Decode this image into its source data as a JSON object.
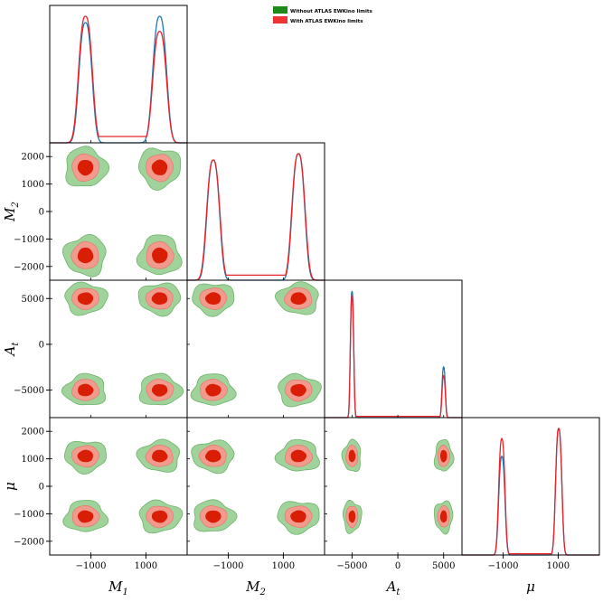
{
  "chart_data": {
    "type": "corner",
    "parameters": [
      {
        "symbol": "M",
        "sub": "1",
        "range": [
          -2500,
          2500
        ],
        "ticks": [
          -1000,
          1000
        ]
      },
      {
        "symbol": "M",
        "sub": "2",
        "range": [
          -2500,
          2500
        ],
        "ticks": [
          -2000,
          -1000,
          0,
          1000,
          2000
        ],
        "tick_labels_x": [
          -1000,
          1000
        ]
      },
      {
        "symbol": "A",
        "sub": "t",
        "range": [
          -8000,
          7000
        ],
        "ticks": [
          -5000,
          0,
          5000
        ]
      },
      {
        "symbol": "μ",
        "sub": "",
        "range": [
          -2500,
          2500
        ],
        "ticks": [
          -2000,
          -1000,
          0,
          1000,
          2000
        ],
        "tick_labels_x": [
          -1000,
          1000
        ]
      }
    ],
    "legend": {
      "placement": "top-center",
      "entries": [
        {
          "label": "Without ATLAS EWKino limits",
          "color": "#1a8a1a"
        },
        {
          "label": "With ATLAS EWKino limits",
          "color": "#ee3333"
        }
      ]
    },
    "series_colors": {
      "without": "#1f77b4",
      "with": "#e8232a"
    },
    "contour_colors": {
      "without_outer": "#9fd39b",
      "without_edge": "#6fb36a",
      "with_outer": "#f29a8e",
      "with_inner": "#d81e05"
    },
    "marginals": [
      {
        "param": 0,
        "without": {
          "modes": [
            {
              "x": -1200,
              "w": 230,
              "h": 0.95
            },
            {
              "x": 1500,
              "w": 240,
              "h": 1.0
            }
          ],
          "floor": 0.0
        },
        "with": {
          "modes": [
            {
              "x": -1200,
              "w": 240,
              "h": 1.0
            },
            {
              "x": 1500,
              "w": 240,
              "h": 0.88
            }
          ],
          "floor": 0.05
        }
      },
      {
        "param": 1,
        "without": {
          "modes": [
            {
              "x": -1550,
              "w": 220,
              "h": 0.95
            },
            {
              "x": 1550,
              "w": 220,
              "h": 1.0
            }
          ],
          "floor": 0.0
        },
        "with": {
          "modes": [
            {
              "x": -1550,
              "w": 230,
              "h": 0.95
            },
            {
              "x": 1550,
              "w": 230,
              "h": 1.0
            }
          ],
          "floor": 0.04
        }
      },
      {
        "param": 2,
        "without": {
          "modes": [
            {
              "x": -5000,
              "w": 180,
              "h": 1.0
            },
            {
              "x": 5000,
              "w": 180,
              "h": 0.4
            }
          ],
          "floor": 0.0
        },
        "with": {
          "modes": [
            {
              "x": -5000,
              "w": 180,
              "h": 0.97
            },
            {
              "x": 5000,
              "w": 180,
              "h": 0.33
            }
          ],
          "floor": 0.01
        }
      },
      {
        "param": 3,
        "without": {
          "modes": [
            {
              "x": -1050,
              "w": 110,
              "h": 0.78
            },
            {
              "x": 1020,
              "w": 110,
              "h": 1.0
            }
          ],
          "floor": 0.0
        },
        "with": {
          "modes": [
            {
              "x": -1050,
              "w": 110,
              "h": 0.92
            },
            {
              "x": 1020,
              "w": 110,
              "h": 1.0
            }
          ],
          "floor": 0.01
        }
      }
    ],
    "joint_modes": [
      {
        "row": 1,
        "col": 0,
        "modes": [
          [
            -1200,
            1600
          ],
          [
            1500,
            1600
          ],
          [
            -1200,
            -1600
          ],
          [
            1500,
            -1600
          ]
        ],
        "w": [
          380,
          380
        ]
      },
      {
        "row": 2,
        "col": 0,
        "modes": [
          [
            -1200,
            5000
          ],
          [
            1500,
            5000
          ],
          [
            -1200,
            -5000
          ],
          [
            1500,
            -5000
          ]
        ],
        "w": [
          380,
          900
        ]
      },
      {
        "row": 2,
        "col": 1,
        "modes": [
          [
            -1550,
            5000
          ],
          [
            1550,
            5000
          ],
          [
            -1550,
            -5000
          ],
          [
            1550,
            -5000
          ]
        ],
        "w": [
          380,
          900
        ]
      },
      {
        "row": 3,
        "col": 0,
        "modes": [
          [
            -1200,
            1100
          ],
          [
            1500,
            1100
          ],
          [
            -1200,
            -1100
          ],
          [
            1500,
            -1100
          ]
        ],
        "w": [
          380,
          300
        ]
      },
      {
        "row": 3,
        "col": 1,
        "modes": [
          [
            -1550,
            1100
          ],
          [
            1550,
            1100
          ],
          [
            -1550,
            -1100
          ],
          [
            1550,
            -1100
          ]
        ],
        "w": [
          380,
          300
        ]
      },
      {
        "row": 3,
        "col": 2,
        "modes": [
          [
            -5000,
            1100
          ],
          [
            5000,
            1100
          ],
          [
            -5000,
            -1100
          ],
          [
            5000,
            -1100
          ]
        ],
        "w": [
          500,
          300
        ]
      }
    ]
  }
}
